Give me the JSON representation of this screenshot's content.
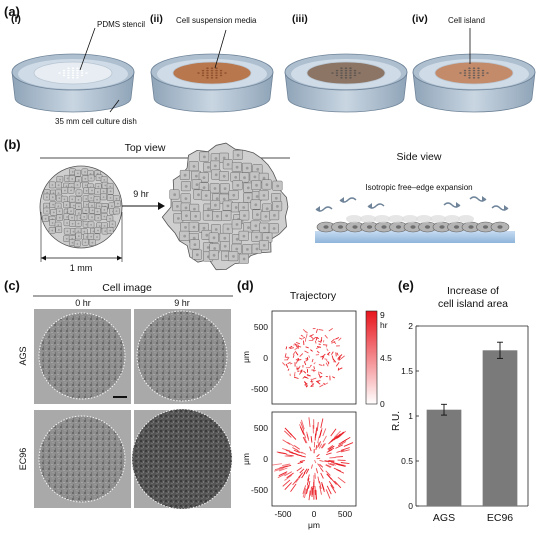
{
  "panel_a": {
    "letter": "(a)",
    "steps": [
      {
        "num": "(i)",
        "callout": "PDMS stencil",
        "bottom_label": "35 mm cell culture dish",
        "fill": "#e7edf3"
      },
      {
        "num": "(ii)",
        "callout": "Cell suspension media",
        "fill": "#b9774d"
      },
      {
        "num": "(iii)",
        "callout": "",
        "fill": "#8c7565"
      },
      {
        "num": "(iv)",
        "callout": "Cell island",
        "fill": "#c48b6a"
      }
    ]
  },
  "panel_b": {
    "letter": "(b)",
    "top_view": "Top view",
    "side_view": "Side view",
    "arrow_label": "9 hr",
    "scale_label": "1 mm",
    "side_caption": "Isotropic free–edge expansion"
  },
  "panel_c": {
    "letter": "(c)",
    "title": "Cell image",
    "col_labels": [
      "0 hr",
      "9 hr"
    ],
    "row_labels": [
      "AGS",
      "EC96"
    ]
  },
  "panel_d": {
    "letter": "(d)",
    "title": "Trajectory",
    "y_unit": "μm",
    "x_unit": "μm",
    "y_ticks": [
      "500",
      "0",
      "-500"
    ],
    "x_ticks": [
      "-500",
      "0",
      "500"
    ],
    "colorbar_ticks": [
      "9",
      "hr",
      "4.5",
      "0"
    ],
    "colorbar_color": "#e8141c"
  },
  "panel_e": {
    "letter": "(e)",
    "title_line1": "Increase of",
    "title_line2": "cell island area",
    "ylabel": "R.U.",
    "yticks": [
      "0",
      "0.5",
      "1",
      "1.5",
      "2"
    ],
    "bar_color": "#7a7a7a"
  },
  "chart_data": {
    "type": "bar",
    "title": "Increase of cell island area",
    "xlabel": "",
    "ylabel": "R.U.",
    "categories": [
      "AGS",
      "EC96"
    ],
    "values": [
      1.07,
      1.73
    ],
    "errors": [
      0.06,
      0.09
    ],
    "ylim": [
      0,
      2
    ],
    "grid": false
  }
}
